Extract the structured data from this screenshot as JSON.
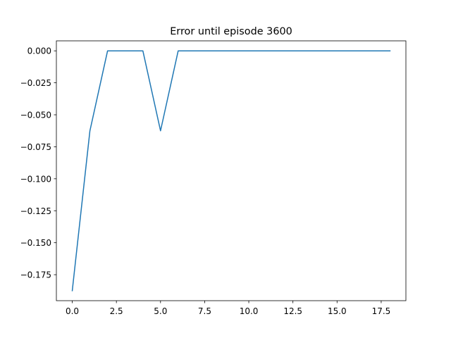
{
  "chart_data": {
    "type": "line",
    "title": "Error until episode 3600",
    "xlabel": "",
    "ylabel": "",
    "xlim": [
      -0.9,
      18.9
    ],
    "ylim": [
      -0.1953125,
      0.0078125
    ],
    "x_ticks": [
      0.0,
      2.5,
      5.0,
      7.5,
      10.0,
      12.5,
      15.0,
      17.5
    ],
    "x_tick_labels": [
      "0.0",
      "2.5",
      "5.0",
      "7.5",
      "10.0",
      "12.5",
      "15.0",
      "17.5"
    ],
    "y_ticks": [
      0.0,
      -0.025,
      -0.05,
      -0.075,
      -0.1,
      -0.125,
      -0.15,
      -0.175
    ],
    "y_tick_labels": [
      "0.000",
      "−0.025",
      "−0.050",
      "−0.075",
      "−0.100",
      "−0.125",
      "−0.150",
      "−0.175"
    ],
    "grid": false,
    "series": [
      {
        "color": "#1f77b4",
        "x": [
          0,
          1,
          2,
          3,
          4,
          5,
          6,
          7,
          8,
          9,
          10,
          11,
          12,
          13,
          14,
          15,
          16,
          17,
          18
        ],
        "y": [
          -0.1875,
          -0.0625,
          0,
          0,
          0,
          -0.0625,
          0,
          0,
          0,
          0,
          0,
          0,
          0,
          0,
          0,
          0,
          0,
          0,
          0
        ]
      }
    ]
  }
}
